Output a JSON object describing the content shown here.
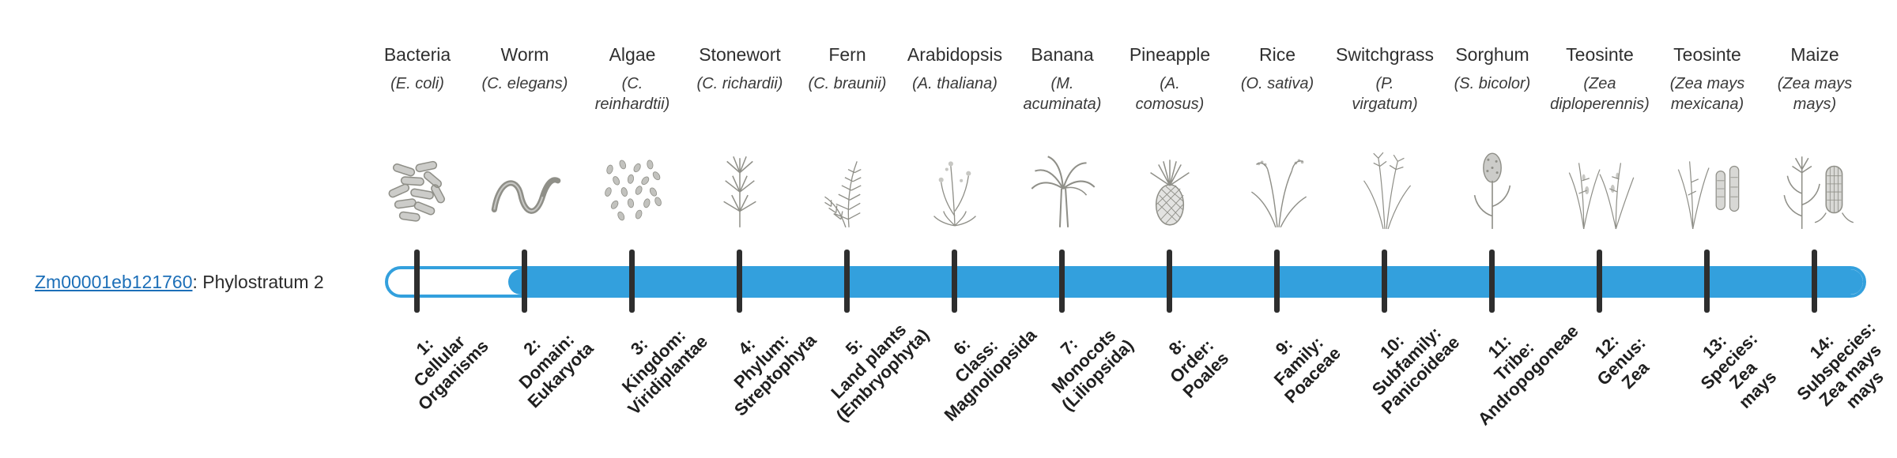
{
  "colors": {
    "bar": "#33a0dd",
    "tick": "#2e2e2e",
    "link": "#1c6fb8",
    "text": "#2b2b2b",
    "illustration": "#8f8f88"
  },
  "gene": {
    "id": "Zm00001eb121760",
    "annotation": ": Phylostratum 2",
    "phylostratum": 2
  },
  "organisms": [
    {
      "name": "Bacteria",
      "scientific": "(E. coli)",
      "icon": "bacteria-icon"
    },
    {
      "name": "Worm",
      "scientific": "(C. elegans)",
      "icon": "worm-icon"
    },
    {
      "name": "Algae",
      "scientific": "(C.\nreinhardtii)",
      "icon": "algae-icon"
    },
    {
      "name": "Stonewort",
      "scientific": "(C. richardii)",
      "icon": "stonewort-icon"
    },
    {
      "name": "Fern",
      "scientific": "(C. braunii)",
      "icon": "fern-icon"
    },
    {
      "name": "Arabidopsis",
      "scientific": "(A. thaliana)",
      "icon": "arabidopsis-icon"
    },
    {
      "name": "Banana",
      "scientific": "(M.\nacuminata)",
      "icon": "banana-icon"
    },
    {
      "name": "Pineapple",
      "scientific": "(A.\ncomosus)",
      "icon": "pineapple-icon"
    },
    {
      "name": "Rice",
      "scientific": "(O. sativa)",
      "icon": "rice-icon"
    },
    {
      "name": "Switchgrass",
      "scientific": "(P.\nvirgatum)",
      "icon": "switchgrass-icon"
    },
    {
      "name": "Sorghum",
      "scientific": "(S. bicolor)",
      "icon": "sorghum-icon"
    },
    {
      "name": "Teosinte",
      "scientific": "(Zea\ndiploperennis)",
      "icon": "teosinte-icon"
    },
    {
      "name": "Teosinte",
      "scientific": "(Zea mays\nmexicana)",
      "icon": "teosinte-ear-icon"
    },
    {
      "name": "Maize",
      "scientific": "(Zea mays\nmays)",
      "icon": "maize-icon"
    }
  ],
  "strata": [
    {
      "label": "1:\nCellular\nOrganisms"
    },
    {
      "label": "2:\nDomain:\nEukaryota"
    },
    {
      "label": "3:\nKingdom:\nViridiplantae"
    },
    {
      "label": "4:\nPhylum:\nStreptophyta"
    },
    {
      "label": "5:\nLand plants\n(Embryophyta)"
    },
    {
      "label": "6:\nClass:\nMagnoliopsida"
    },
    {
      "label": "7:\nMonocots\n(Liliopsida)"
    },
    {
      "label": "8:\nOrder:\nPoales"
    },
    {
      "label": "9:\nFamily:\nPoaceae"
    },
    {
      "label": "10:\nSubfamily:\nPanicoideae"
    },
    {
      "label": "11:\nTribe:\nAndropogoneae"
    },
    {
      "label": "12:\nGenus:\nZea"
    },
    {
      "label": "13:\nSpecies:\nZea\nmays"
    },
    {
      "label": "14:\nSubspecies:\nZea mays\nmays"
    }
  ]
}
